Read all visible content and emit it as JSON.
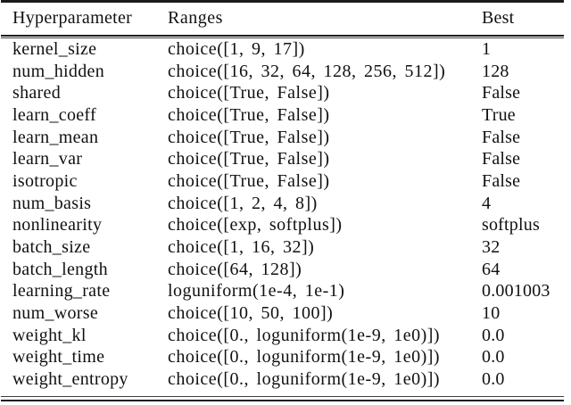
{
  "table": {
    "headers": [
      "Hyperparameter",
      "Ranges",
      "Best"
    ],
    "rows": [
      {
        "name": "kernel_size",
        "range": "choice([1, 9, 17])",
        "best": "1"
      },
      {
        "name": "num_hidden",
        "range": "choice([16, 32, 64, 128, 256, 512])",
        "best": "128"
      },
      {
        "name": "shared",
        "range": "choice([True, False])",
        "best": "False"
      },
      {
        "name": "learn_coeff",
        "range": "choice([True, False])",
        "best": "True"
      },
      {
        "name": "learn_mean",
        "range": "choice([True, False])",
        "best": "False"
      },
      {
        "name": "learn_var",
        "range": "choice([True, False])",
        "best": "False"
      },
      {
        "name": "isotropic",
        "range": "choice([True, False])",
        "best": "False"
      },
      {
        "name": "num_basis",
        "range": "choice([1, 2, 4, 8])",
        "best": "4"
      },
      {
        "name": "nonlinearity",
        "range": "choice([exp, softplus])",
        "best": "softplus"
      },
      {
        "name": "batch_size",
        "range": "choice([1, 16, 32])",
        "best": "32"
      },
      {
        "name": "batch_length",
        "range": "choice([64, 128])",
        "best": "64"
      },
      {
        "name": "learning_rate",
        "range": "loguniform(1e-4, 1e-1)",
        "best": "0.001003"
      },
      {
        "name": "num_worse",
        "range": "choice([10, 50, 100])",
        "best": "10"
      },
      {
        "name": "weight_kl",
        "range": "choice([0., loguniform(1e-9, 1e0)])",
        "best": "0.0"
      },
      {
        "name": "weight_time",
        "range": "choice([0., loguniform(1e-9, 1e0)])",
        "best": "0.0"
      },
      {
        "name": "weight_entropy",
        "range": "choice([0., loguniform(1e-9, 1e0)])",
        "best": "0.0"
      }
    ]
  },
  "style": {
    "text_color": "#111111",
    "rule_color": "#1b1b1b",
    "thin_rule_color": "#3d3d3d",
    "page_bg": "#ffffff"
  }
}
